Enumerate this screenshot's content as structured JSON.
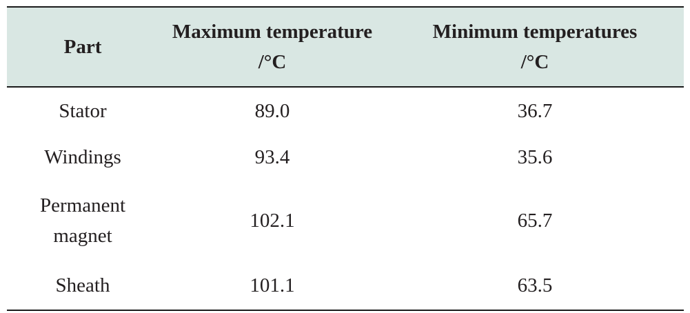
{
  "table": {
    "headers": {
      "part": "Part",
      "max_line1": "Maximum temperature",
      "max_line2": "/°C",
      "min_line1": "Minimum temperatures",
      "min_line2": "/°C"
    },
    "rows": [
      {
        "part_line1": "Stator",
        "part_line2": "",
        "max": "89.0",
        "min": "36.7"
      },
      {
        "part_line1": "Windings",
        "part_line2": "",
        "max": "93.4",
        "min": "35.6"
      },
      {
        "part_line1": "Permanent",
        "part_line2": "magnet",
        "max": "102.1",
        "min": "65.7"
      },
      {
        "part_line1": "Sheath",
        "part_line2": "",
        "max": "101.1",
        "min": "63.5"
      }
    ]
  }
}
